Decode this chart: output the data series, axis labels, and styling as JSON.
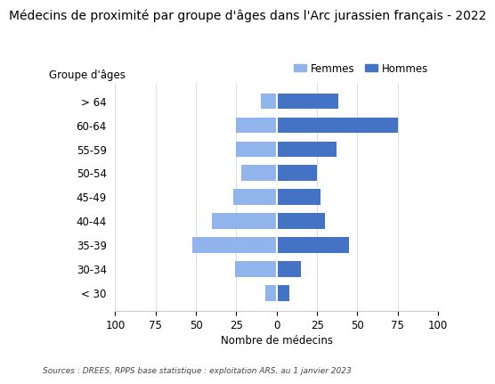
{
  "title": "Médecins de proximité par groupe d'âges dans l'Arc jurassien français - 2022",
  "categories": [
    "< 30",
    "30-34",
    "35-39",
    "40-44",
    "45-49",
    "50-54",
    "55-59",
    "60-64",
    "> 64"
  ],
  "femmes": [
    7,
    26,
    52,
    40,
    27,
    22,
    25,
    25,
    10
  ],
  "hommes": [
    8,
    15,
    45,
    30,
    27,
    25,
    37,
    75,
    38
  ],
  "color_femmes": "#92b4ec",
  "color_hommes": "#4472c4",
  "xlabel": "Nombre de médecins",
  "ylabel": "Groupe d'âges",
  "xlim": [
    -100,
    100
  ],
  "xticks": [
    -100,
    -75,
    -50,
    -25,
    0,
    25,
    50,
    75,
    100
  ],
  "xtick_labels": [
    "100",
    "75",
    "50",
    "25",
    "0",
    "25",
    "50",
    "75",
    "100"
  ],
  "footnote": "Sources : DREES, RPPS base statistique : exploitation ARS, au 1 janvier 2023",
  "background_color": "#ffffff",
  "title_fontsize": 10,
  "axis_fontsize": 8.5,
  "tick_fontsize": 8.5,
  "legend_fontsize": 8.5
}
